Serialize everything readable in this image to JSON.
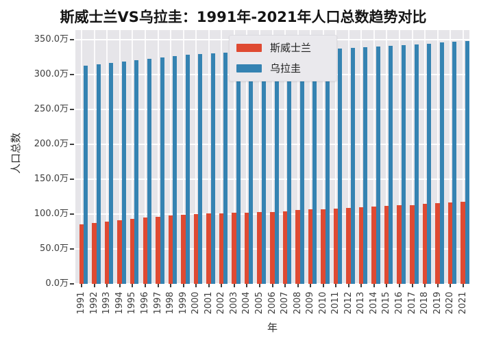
{
  "title": "斯威士兰VS乌拉圭：1991年-2021年人口总数趋势对比",
  "colors": {
    "series_red": "#df4a32",
    "series_blue": "#3583b2",
    "plot_background": "#e6e5e9",
    "grid": "#ffffff",
    "tick_text": "#3d3d3d"
  },
  "chart_data": {
    "type": "bar",
    "title": "斯威士兰VS乌拉圭：1991年-2021年人口总数趋势对比",
    "xlabel": "年",
    "ylabel": "人口总数",
    "unit": "万",
    "grid": true,
    "legend_position": "upper center",
    "ylim": [
      0,
      364
    ],
    "yticks": [
      0,
      50,
      100,
      150,
      200,
      250,
      300,
      350
    ],
    "ytick_labels": [
      "0.0万",
      "50.0万",
      "100.0万",
      "150.0万",
      "200.0万",
      "250.0万",
      "300.0万",
      "350.0万"
    ],
    "categories": [
      1991,
      1992,
      1993,
      1994,
      1995,
      1996,
      1997,
      1998,
      1999,
      2000,
      2001,
      2002,
      2003,
      2004,
      2005,
      2006,
      2007,
      2008,
      2009,
      2010,
      2011,
      2012,
      2013,
      2014,
      2015,
      2016,
      2017,
      2018,
      2019,
      2020,
      2021
    ],
    "series": [
      {
        "name": "斯威士兰",
        "color": "#df4a32",
        "values": [
          85,
          87,
          89,
          91,
          93,
          95,
          96.5,
          98,
          99.5,
          100.5,
          101,
          101.5,
          102,
          102.5,
          103,
          103.5,
          104.5,
          105.5,
          106.5,
          107,
          108,
          108.5,
          109.5,
          110.5,
          111.5,
          112.5,
          113,
          114.5,
          115.5,
          116.5,
          117.5
        ]
      },
      {
        "name": "乌拉圭",
        "color": "#3583b2",
        "values": [
          313,
          315,
          317,
          319,
          321,
          323,
          325,
          327,
          328.5,
          330,
          331,
          331.5,
          332,
          332.5,
          333,
          333.5,
          334,
          334.5,
          335.5,
          336.5,
          337.5,
          338.5,
          339.5,
          340.5,
          341.5,
          342.5,
          343.5,
          344.5,
          346,
          347,
          348.5
        ]
      }
    ]
  }
}
